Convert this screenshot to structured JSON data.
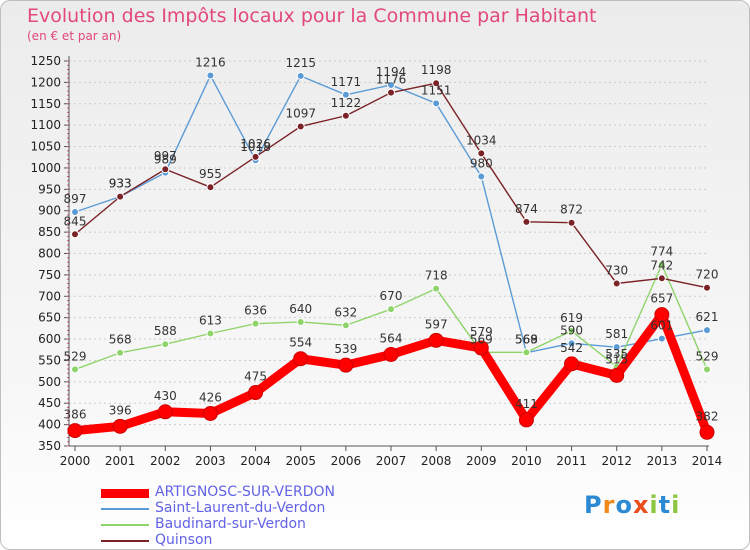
{
  "title": "Evolution des Impôts locaux pour la Commune par Habitant",
  "subtitle": "(en € et par an)",
  "logo_text": "Proxiti",
  "colors": {
    "title": "#e2477e",
    "legend_text": "#6262e6",
    "axis": "#555555",
    "grid": "#cccccc"
  },
  "chart_data": {
    "type": "line",
    "x": [
      2000,
      2001,
      2002,
      2003,
      2004,
      2005,
      2006,
      2007,
      2008,
      2009,
      2010,
      2011,
      2012,
      2013,
      2014
    ],
    "ylim": [
      350,
      1250
    ],
    "yticks": [
      350,
      400,
      450,
      500,
      550,
      600,
      650,
      700,
      750,
      800,
      850,
      900,
      950,
      1000,
      1050,
      1100,
      1150,
      1200,
      1250
    ],
    "grid": "horizontal",
    "legend_position": "bottom-left",
    "series": [
      {
        "name": "ARTIGNOSC-SUR-VERDON",
        "color": "#ff0000",
        "emphasis": true,
        "values": [
          386,
          396,
          430,
          426,
          475,
          554,
          539,
          564,
          597,
          579,
          411,
          542,
          515,
          657,
          382
        ]
      },
      {
        "name": "Saint-Laurent-du-Verdon",
        "color": "#5b9bd5",
        "emphasis": false,
        "values": [
          897,
          933,
          989,
          1216,
          1018,
          1215,
          1171,
          1194,
          1151,
          980,
          568,
          590,
          581,
          601,
          621
        ]
      },
      {
        "name": "Baudinard-sur-Verdon",
        "color": "#8fd46b",
        "emphasis": false,
        "values": [
          529,
          568,
          588,
          613,
          636,
          640,
          632,
          670,
          718,
          569,
          569,
          619,
          535,
          774,
          529
        ]
      },
      {
        "name": "Quinson",
        "color": "#7a2226",
        "emphasis": false,
        "values": [
          845,
          933,
          997,
          955,
          1026,
          1097,
          1122,
          1176,
          1198,
          1034,
          874,
          872,
          730,
          742,
          720
        ]
      }
    ]
  }
}
